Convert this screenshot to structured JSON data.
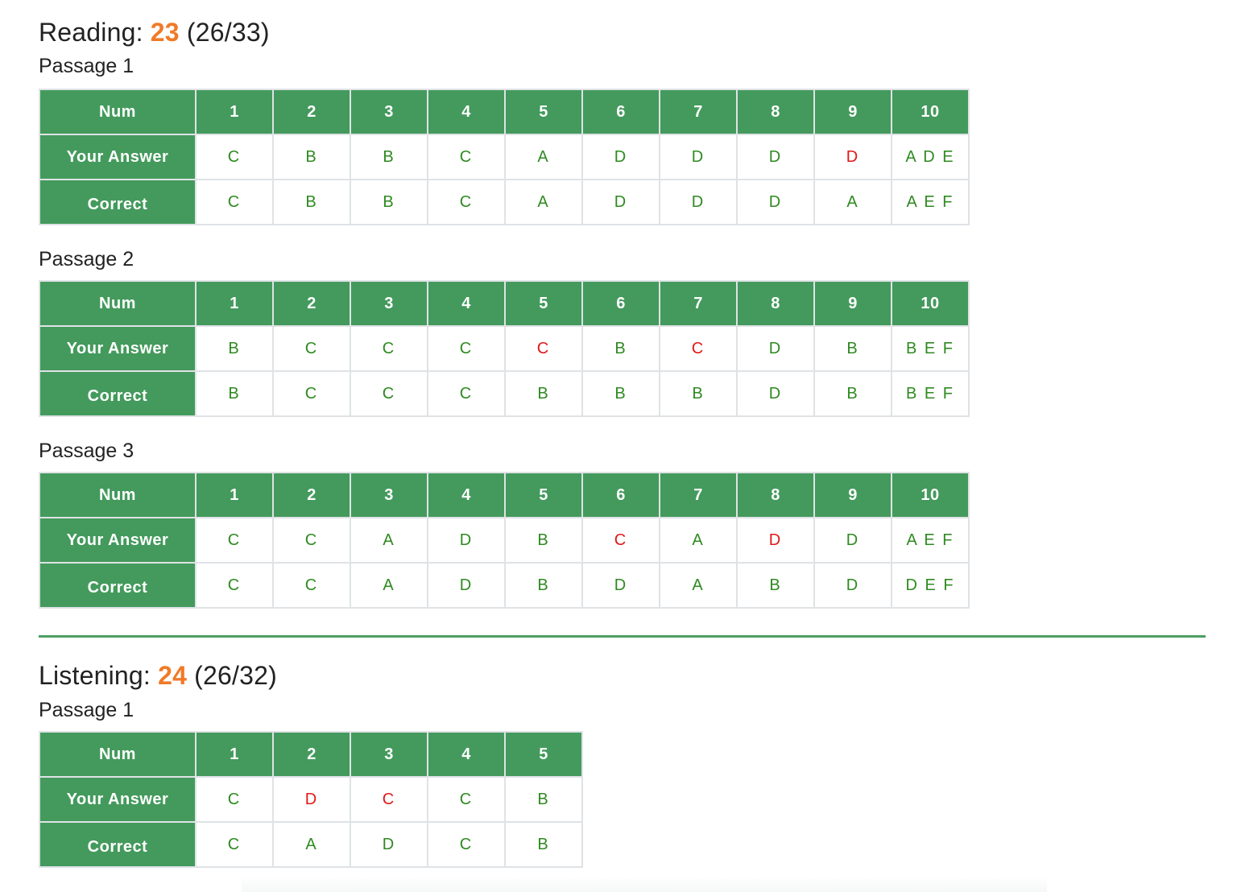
{
  "reading": {
    "label": "Reading:",
    "score": "23",
    "ratio": "(26/33)",
    "passages": [
      {
        "title": "Passage 1",
        "header": [
          "Num",
          "1",
          "2",
          "3",
          "4",
          "5",
          "6",
          "7",
          "8",
          "9",
          "10"
        ],
        "answer_label": "Your Answer",
        "correct_label": "Correct",
        "your_answers": [
          "C",
          "B",
          "B",
          "C",
          "A",
          "D",
          "D",
          "D",
          "D",
          "A D E"
        ],
        "correct_answers": [
          "C",
          "B",
          "B",
          "C",
          "A",
          "D",
          "D",
          "D",
          "A",
          "A E F"
        ],
        "answer_status": [
          "ok",
          "ok",
          "ok",
          "ok",
          "ok",
          "ok",
          "ok",
          "ok",
          "bad",
          "ok"
        ]
      },
      {
        "title": "Passage 2",
        "header": [
          "Num",
          "1",
          "2",
          "3",
          "4",
          "5",
          "6",
          "7",
          "8",
          "9",
          "10"
        ],
        "answer_label": "Your Answer",
        "correct_label": "Correct",
        "your_answers": [
          "B",
          "C",
          "C",
          "C",
          "C",
          "B",
          "C",
          "D",
          "B",
          "B E F"
        ],
        "correct_answers": [
          "B",
          "C",
          "C",
          "C",
          "B",
          "B",
          "B",
          "D",
          "B",
          "B E F"
        ],
        "answer_status": [
          "ok",
          "ok",
          "ok",
          "ok",
          "bad",
          "ok",
          "bad",
          "ok",
          "ok",
          "ok"
        ]
      },
      {
        "title": "Passage 3",
        "header": [
          "Num",
          "1",
          "2",
          "3",
          "4",
          "5",
          "6",
          "7",
          "8",
          "9",
          "10"
        ],
        "answer_label": "Your Answer",
        "correct_label": "Correct",
        "your_answers": [
          "C",
          "C",
          "A",
          "D",
          "B",
          "C",
          "A",
          "D",
          "D",
          "A E F"
        ],
        "correct_answers": [
          "C",
          "C",
          "A",
          "D",
          "B",
          "D",
          "A",
          "B",
          "D",
          "D E F"
        ],
        "answer_status": [
          "ok",
          "ok",
          "ok",
          "ok",
          "ok",
          "bad",
          "ok",
          "bad",
          "ok",
          "ok"
        ]
      }
    ]
  },
  "listening": {
    "label": "Listening:",
    "score": "24",
    "ratio": "(26/32)",
    "passages": [
      {
        "title": "Passage 1",
        "header": [
          "Num",
          "1",
          "2",
          "3",
          "4",
          "5"
        ],
        "answer_label": "Your Answer",
        "correct_label": "Correct",
        "your_answers": [
          "C",
          "D",
          "C",
          "C",
          "B"
        ],
        "correct_answers": [
          "C",
          "A",
          "D",
          "C",
          "B"
        ],
        "answer_status": [
          "ok",
          "bad",
          "bad",
          "ok",
          "ok"
        ]
      }
    ]
  },
  "colors": {
    "header_green": "#439a5c",
    "correct_text": "#2f8a21",
    "wrong_text": "#e01919",
    "score_orange": "#f07a28",
    "divider": "#4e9e63"
  }
}
